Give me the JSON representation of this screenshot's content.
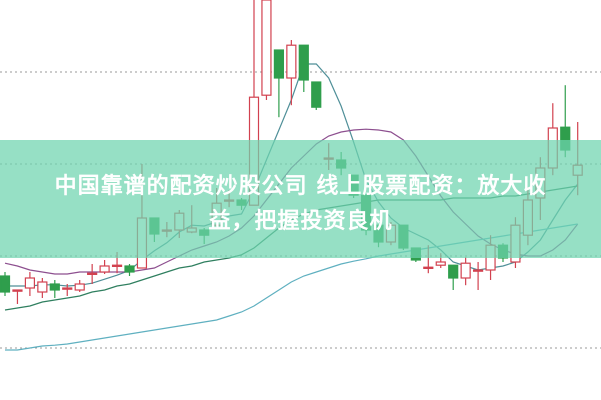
{
  "title": {
    "line1": "中国靠谱的配资炒股公司 线上股票配资：放大收",
    "line2": "益，把握投资良机"
  },
  "colors": {
    "up": "#d2414f",
    "down": "#2f9e4c",
    "grid": "#9a9a9a",
    "banner": "#6ed4af",
    "ma_fast": "#4f8f98",
    "ma_purple": "#8d4f8f",
    "ma_green": "#2f7f5f",
    "ma_slow": "#5fb0c0"
  },
  "chart_data": {
    "type": "candlestick",
    "title": "",
    "xlabel": "",
    "ylabel": "",
    "ylim": [
      0,
      100
    ],
    "grid": true,
    "grid_style": "dotted horizontal",
    "grid_levels": [
      82,
      59,
      36,
      13
    ],
    "legend": "none",
    "candles": [
      {
        "o": 31,
        "h": 32,
        "l": 26,
        "c": 27
      },
      {
        "o": 27.5,
        "h": 27.5,
        "l": 24,
        "c": 27.5
      },
      {
        "o": 28,
        "h": 32,
        "l": 26,
        "c": 30.5
      },
      {
        "o": 27,
        "h": 30.5,
        "l": 25.5,
        "c": 29.5
      },
      {
        "o": 29,
        "h": 30,
        "l": 25.5,
        "c": 27.5
      },
      {
        "o": 28,
        "h": 29,
        "l": 26,
        "c": 28
      },
      {
        "o": 27.5,
        "h": 30,
        "l": 27,
        "c": 29
      },
      {
        "o": 31.7,
        "h": 34,
        "l": 29,
        "c": 31.7
      },
      {
        "o": 32,
        "h": 35,
        "l": 31.5,
        "c": 33.5
      },
      {
        "o": 33.7,
        "h": 37,
        "l": 31.7,
        "c": 33.7
      },
      {
        "o": 33.5,
        "h": 34,
        "l": 31,
        "c": 32
      },
      {
        "o": 33,
        "h": 59,
        "l": 33,
        "c": 45.5
      },
      {
        "o": 45.5,
        "h": 45.5,
        "l": 39.5,
        "c": 41.5
      },
      {
        "o": 42.5,
        "h": 44.5,
        "l": 40.7,
        "c": 42.5
      },
      {
        "o": 42.5,
        "h": 47.5,
        "l": 40.5,
        "c": 46.7
      },
      {
        "o": 42,
        "h": 48.7,
        "l": 41.7,
        "c": 43
      },
      {
        "o": 42.5,
        "h": 43,
        "l": 39,
        "c": 41.2
      },
      {
        "o": 43.7,
        "h": 53,
        "l": 43,
        "c": 49.2
      },
      {
        "o": 50,
        "h": 52.5,
        "l": 48.2,
        "c": 50
      },
      {
        "o": 50,
        "h": 50.5,
        "l": 47.5,
        "c": 48.7
      },
      {
        "o": 48.7,
        "h": 100,
        "l": 48.7,
        "c": 75.7
      },
      {
        "o": 76.2,
        "h": 100,
        "l": 75,
        "c": 100
      },
      {
        "o": 87.5,
        "h": 87.5,
        "l": 70.7,
        "c": 80.5
      },
      {
        "o": 80.5,
        "h": 90,
        "l": 73.7,
        "c": 88.7
      },
      {
        "o": 88.7,
        "h": 88.7,
        "l": 77,
        "c": 80
      },
      {
        "o": 79.5,
        "h": 79.5,
        "l": 72.5,
        "c": 73.2
      },
      {
        "o": 60.5,
        "h": 64.2,
        "l": 57.5,
        "c": 60.5
      },
      {
        "o": 60,
        "h": 62,
        "l": 56.2,
        "c": 58
      },
      {
        "o": 56.2,
        "h": 56.2,
        "l": 50.5,
        "c": 51.2
      },
      {
        "o": 51.2,
        "h": 51.2,
        "l": 41.2,
        "c": 42.5
      },
      {
        "o": 43.7,
        "h": 43.7,
        "l": 38.2,
        "c": 39.5
      },
      {
        "o": 39.5,
        "h": 44.5,
        "l": 38.7,
        "c": 43.7
      },
      {
        "o": 43.7,
        "h": 43.7,
        "l": 37.5,
        "c": 38
      },
      {
        "o": 38,
        "h": 38,
        "l": 34.5,
        "c": 35
      },
      {
        "o": 33.2,
        "h": 38.7,
        "l": 31.7,
        "c": 33.2
      },
      {
        "o": 33.7,
        "h": 36.7,
        "l": 33,
        "c": 34.5
      },
      {
        "o": 33.7,
        "h": 33.7,
        "l": 27.5,
        "c": 30.5
      },
      {
        "o": 30.5,
        "h": 35.7,
        "l": 28.7,
        "c": 34.2
      },
      {
        "o": 32.5,
        "h": 34.5,
        "l": 27.5,
        "c": 32.5
      },
      {
        "o": 32.5,
        "h": 41.2,
        "l": 30,
        "c": 38.7
      },
      {
        "o": 38.7,
        "h": 39.2,
        "l": 34.5,
        "c": 35.5
      },
      {
        "o": 34.5,
        "h": 45.7,
        "l": 33,
        "c": 43.7
      },
      {
        "o": 41.2,
        "h": 53.2,
        "l": 38.7,
        "c": 50
      },
      {
        "o": 50.5,
        "h": 60.7,
        "l": 45,
        "c": 58
      },
      {
        "o": 58,
        "h": 74.2,
        "l": 56.2,
        "c": 68
      },
      {
        "o": 68.2,
        "h": 78.7,
        "l": 60.7,
        "c": 62.5
      },
      {
        "o": 56.2,
        "h": 69.5,
        "l": 51.2,
        "c": 58.7
      }
    ],
    "moving_averages": [
      {
        "color_key": "ma_fast",
        "values": [
          28.5,
          28.5,
          28.5,
          28.8,
          28.8,
          28.5,
          28.7,
          29.2,
          30.2,
          31.2,
          32.4,
          35,
          37.3,
          39.3,
          42,
          43.7,
          43.5,
          44.5,
          46,
          46.5,
          52.5,
          60,
          67.5,
          75,
          84,
          84,
          80.5,
          73.5,
          64.5,
          55,
          49.5,
          45.5,
          43,
          41.5,
          40,
          37.5,
          34.5,
          33.5,
          32.5,
          33,
          33.5,
          34.5,
          37,
          40,
          45,
          50,
          54
        ]
      },
      {
        "color_key": "ma_purple",
        "values": [
          34.2,
          33.5,
          32.5,
          32,
          31.5,
          31.5,
          32,
          32,
          32,
          32,
          32,
          32.5,
          33,
          34.5,
          36,
          37.5,
          38.5,
          39.5,
          41,
          43,
          46,
          50,
          54,
          58,
          61,
          64,
          66,
          67,
          67.5,
          67.7,
          67.5,
          67,
          65,
          61,
          56,
          51,
          47,
          44,
          41,
          39,
          37.5,
          36.5,
          36,
          36,
          37.5,
          40,
          44
        ]
      },
      {
        "color_key": "ma_green",
        "values": [
          22.5,
          23,
          23.5,
          24.5,
          25,
          25.5,
          26,
          27,
          27.5,
          28.5,
          29,
          30,
          31,
          32,
          33,
          33.5,
          34.5,
          35,
          35.5,
          36.3,
          38,
          40.5,
          43,
          45,
          46.5,
          47.5,
          48,
          48.5,
          49,
          49.5,
          50,
          50,
          50,
          50,
          50,
          50,
          50.5,
          50.5,
          50.5,
          50.5,
          51,
          51,
          51.5,
          52,
          52.5,
          53,
          53.5
        ]
      },
      {
        "color_key": "ma_slow",
        "values": [
          12.5,
          12.5,
          13,
          13.5,
          13.7,
          14,
          14.5,
          15,
          15.5,
          16,
          16.5,
          17,
          17.5,
          18,
          18.5,
          19,
          19.5,
          20,
          21,
          22,
          23.5,
          25.5,
          27.5,
          29.5,
          31,
          32,
          33,
          34,
          34.7,
          35.3,
          36,
          36.5,
          37,
          37.5,
          38,
          38.5,
          39,
          39.5,
          40,
          40.5,
          41,
          41.5,
          42,
          42.5,
          43,
          43.5,
          44
        ]
      }
    ]
  }
}
